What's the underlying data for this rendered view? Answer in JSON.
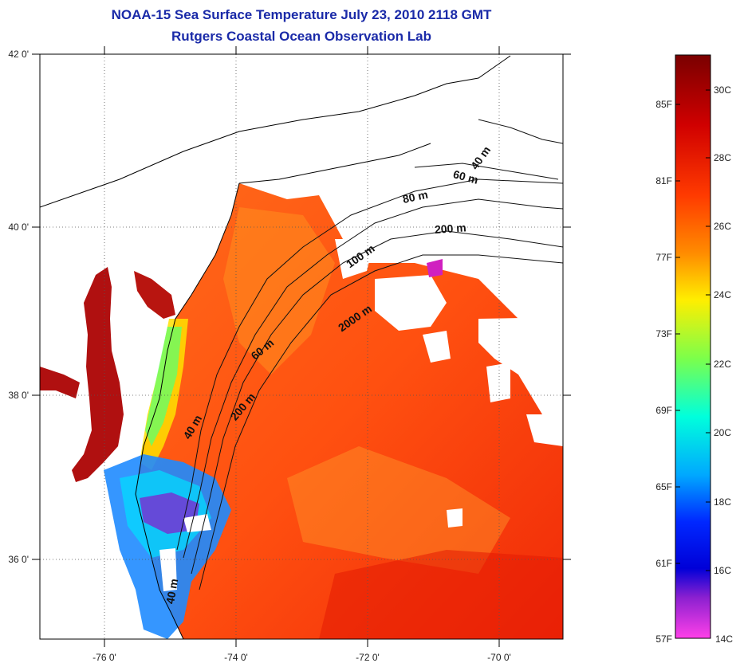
{
  "title_line1": "NOAA-15 Sea Surface Temperature July 23, 2010 2118 GMT",
  "title_line2": "Rutgers Coastal Ocean Observation Lab",
  "map": {
    "lat_ticks": [
      "42 0'",
      "40 0'",
      "38 0'",
      "36 0'"
    ],
    "lon_ticks": [
      "-76 0'",
      "-74 0'",
      "-72 0'",
      "-70 0'"
    ],
    "contour_labels": [
      "40 m",
      "60 m",
      "80 m",
      "200 m",
      "100 m",
      "2000 m",
      "60 m",
      "200 m",
      "40 m",
      "40 m"
    ]
  },
  "colorbar": {
    "fahrenheit_labels": [
      "85F",
      "81F",
      "77F",
      "73F",
      "69F",
      "65F",
      "61F",
      "57F"
    ],
    "celsius_labels": [
      "30C",
      "28C",
      "26C",
      "24C",
      "22C",
      "20C",
      "18C",
      "16C",
      "14C"
    ],
    "gradient_colors": [
      "#7a0000",
      "#d00000",
      "#ff3a00",
      "#ff8c00",
      "#ffee00",
      "#7cff4a",
      "#00ffdc",
      "#00a8ff",
      "#0028ff",
      "#0000d8",
      "#8b20d0",
      "#ff40e8"
    ]
  }
}
